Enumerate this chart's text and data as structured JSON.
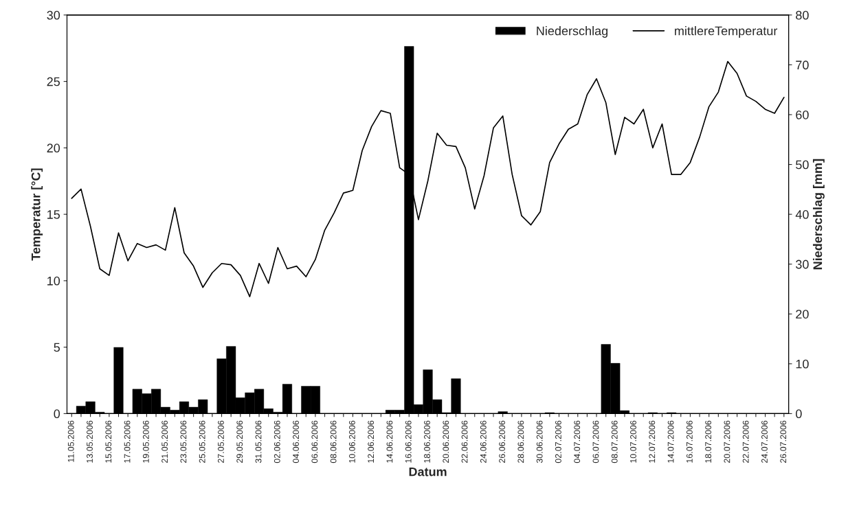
{
  "chart_data": {
    "type": "bar",
    "xlabel": "Datum",
    "ylabel": "Temperatur [°C]",
    "y2label": "Niederschlag [mm]",
    "categories": [
      "11.05.2006",
      null,
      "13.05.2006",
      null,
      "15.05.2006",
      null,
      "17.05.2006",
      null,
      "19.05.2006",
      null,
      "21.05.2006",
      null,
      "23.05.2006",
      null,
      "25.05.2006",
      null,
      "27.05.2006",
      null,
      "29.05.2006",
      null,
      "31.05.2006",
      null,
      "02.06.2006",
      null,
      "04.06.2006",
      null,
      "06.06.2006",
      null,
      "08.06.2006",
      null,
      "10.06.2006",
      null,
      "12.06.2006",
      null,
      "14.06.2006",
      null,
      "16.06.2006",
      null,
      "18.06.2006",
      null,
      "20.06.2006",
      null,
      "22.06.2006",
      null,
      "24.06.2006",
      null,
      "26.06.2006",
      null,
      "28.06.2006",
      null,
      "30.06.2006",
      null,
      "02.07.2006",
      null,
      "04.07.2006",
      null,
      "06.07.2006",
      null,
      "08.07.2006",
      null,
      "10.07.2006",
      null,
      "12.07.2006",
      null,
      "14.07.2006",
      null,
      "16.07.2006",
      null,
      "18.07.2006",
      null,
      "20.07.2006",
      null,
      "22.07.2006",
      null,
      "24.07.2006",
      null,
      "26.07.2006"
    ],
    "series": [
      {
        "name": "Niederschlag",
        "axis": "y2",
        "color": "#000000",
        "values": [
          0,
          1.5,
          2.4,
          0.3,
          0,
          13.3,
          0,
          4.9,
          4.0,
          4.9,
          1.3,
          0.7,
          2.4,
          1.3,
          2.8,
          0,
          11.0,
          13.5,
          3.2,
          4.2,
          4.9,
          1.0,
          0.3,
          5.9,
          0,
          5.5,
          5.5,
          0,
          0,
          0,
          0,
          0,
          0,
          0,
          0.7,
          0.7,
          73.7,
          1.8,
          8.8,
          2.8,
          0.2,
          7.0,
          0,
          0,
          0,
          0,
          0.4,
          0,
          0,
          0,
          0,
          0.2,
          0,
          0,
          0,
          0,
          0,
          13.9,
          10.1,
          0.6,
          0,
          0,
          0.2,
          0,
          0.2,
          0,
          0,
          0,
          0,
          0,
          0,
          0,
          0,
          0,
          0,
          0,
          0
        ]
      },
      {
        "name": "mittlereTemperatur",
        "type": "line",
        "color": "#000000",
        "values": [
          16.2,
          16.9,
          14.1,
          10.9,
          10.4,
          13.6,
          11.5,
          12.8,
          12.5,
          12.7,
          12.3,
          15.5,
          12.1,
          11.1,
          9.5,
          10.6,
          11.3,
          11.2,
          10.4,
          8.8,
          11.3,
          9.8,
          12.5,
          10.9,
          11.1,
          10.3,
          11.6,
          13.8,
          15.1,
          16.6,
          16.8,
          19.8,
          21.6,
          22.8,
          22.6,
          18.5,
          18.0,
          14.6,
          17.5,
          21.1,
          20.2,
          20.1,
          18.5,
          15.4,
          17.9,
          21.5,
          22.4,
          18.0,
          14.9,
          14.2,
          15.2,
          18.9,
          20.3,
          21.4,
          21.8,
          24.0,
          25.2,
          23.4,
          19.5,
          22.3,
          21.8,
          22.9,
          20.0,
          21.8,
          18.0,
          18.0,
          18.9,
          20.8,
          23.1,
          24.2,
          26.5,
          25.6,
          23.9,
          23.5,
          22.9,
          22.6,
          23.8
        ]
      }
    ],
    "ylim": [
      0,
      30
    ],
    "yticks": [
      0,
      5,
      10,
      15,
      20,
      25,
      30
    ],
    "y2lim": [
      0,
      80
    ],
    "y2ticks": [
      0,
      10,
      20,
      30,
      40,
      50,
      60,
      70,
      80
    ],
    "legend": "top right",
    "grid": false
  }
}
